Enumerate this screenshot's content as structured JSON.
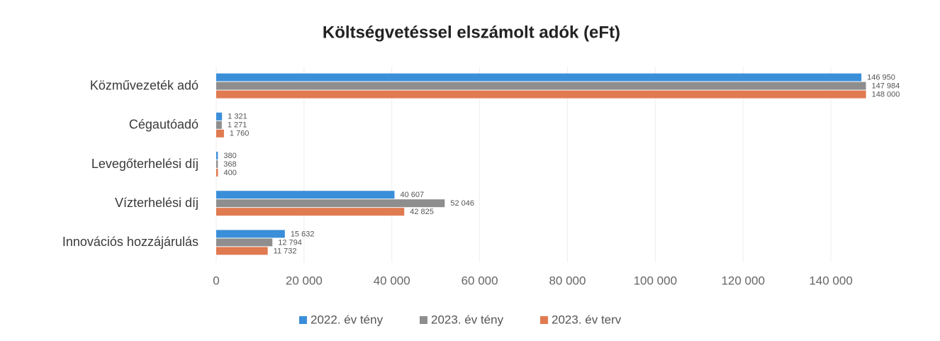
{
  "chart_data": {
    "type": "bar",
    "orientation": "horizontal",
    "title": "Költségvetéssel elszámolt adók (eFt)",
    "categories": [
      "Közművezeték adó",
      "Cégautóadó",
      "Levegőterhelési díj",
      "Vízterhelési díj",
      "Innovációs hozzájárulás"
    ],
    "series": [
      {
        "name": "2022. év tény",
        "color": "#3b8fd9",
        "values": [
          146950,
          1321,
          380,
          40607,
          15632
        ],
        "value_labels": [
          "146 950",
          "1 321",
          "380",
          "40 607",
          "15 632"
        ]
      },
      {
        "name": "2023. év tény",
        "color": "#8e8e8e",
        "values": [
          147984,
          1271,
          368,
          52046,
          12794
        ],
        "value_labels": [
          "147 984",
          "1 271",
          "368",
          "52 046",
          "12 794"
        ]
      },
      {
        "name": "2023. év terv",
        "color": "#e07a50",
        "values": [
          148000,
          1760,
          400,
          42825,
          11732
        ],
        "value_labels": [
          "148 000",
          "1 760",
          "400",
          "42 825",
          "11 732"
        ]
      }
    ],
    "xlim": [
      0,
      150000
    ],
    "xticks": [
      0,
      {
        "value": 20000,
        "label": "20 000"
      },
      {
        "value": 40000,
        "label": "40 000"
      },
      {
        "value": 60000,
        "label": "60 000"
      },
      {
        "value": 80000,
        "label": "80 000"
      },
      {
        "value": 100000,
        "label": "100 000"
      },
      {
        "value": 120000,
        "label": "120 000"
      },
      {
        "value": 140000,
        "label": "140 000"
      }
    ],
    "grid": true,
    "legend": "bottom"
  }
}
